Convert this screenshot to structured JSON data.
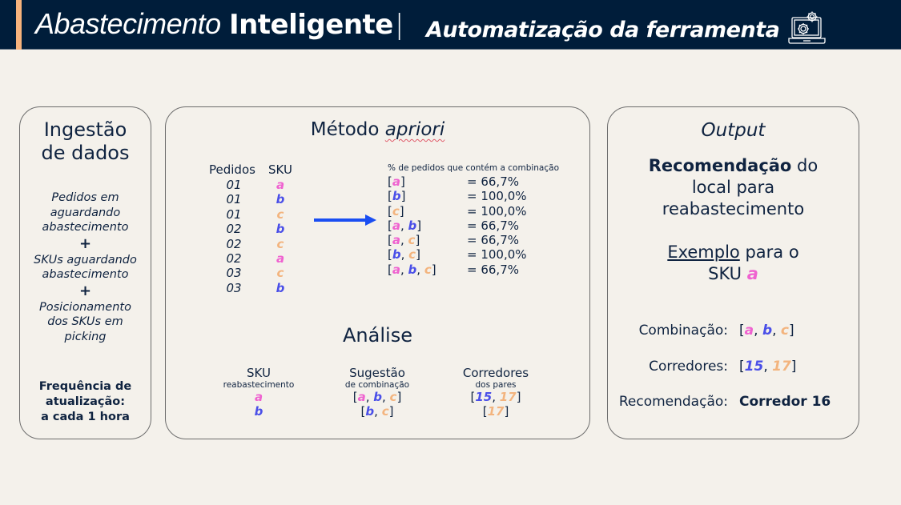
{
  "header": {
    "title_light": "Abastecimento",
    "title_bold": "Inteligente",
    "title_separator": "|",
    "subtitle": "Automatização da ferramenta",
    "icon": "laptop-gears-icon",
    "accent_color": "#f6b27c",
    "background_color": "#001d3a"
  },
  "ingestion": {
    "title_line1": "Ingestão",
    "title_line2": "de dados",
    "items": [
      [
        "Pedidos em",
        "aguardando",
        "abastecimento"
      ],
      [
        "SKUs aguardando",
        "abastecimento"
      ],
      [
        "Posicionamento",
        "dos SKUs em",
        "picking"
      ]
    ],
    "plus": "+",
    "frequency_line1": "Frequência de",
    "frequency_line2": "atualização:",
    "frequency_line3": "a cada 1 hora"
  },
  "method": {
    "title": "Método",
    "title_italic": "apriori",
    "table_headers": [
      "Pedidos",
      "SKU"
    ],
    "rows": [
      {
        "pedido": "01",
        "sku": "a"
      },
      {
        "pedido": "01",
        "sku": "b"
      },
      {
        "pedido": "01",
        "sku": "c"
      },
      {
        "pedido": "02",
        "sku": "b"
      },
      {
        "pedido": "02",
        "sku": "c"
      },
      {
        "pedido": "02",
        "sku": "a"
      },
      {
        "pedido": "03",
        "sku": "c"
      },
      {
        "pedido": "03",
        "sku": "b"
      }
    ],
    "arrow": "right-arrow-icon",
    "combos_header": "% de pedidos que contém a combinação",
    "combos": [
      {
        "items": [
          "a"
        ],
        "value": "= 66,7%"
      },
      {
        "items": [
          "b"
        ],
        "value": "= 100,0%"
      },
      {
        "items": [
          "c"
        ],
        "value": "= 100,0%"
      },
      {
        "items": [
          "a",
          "b"
        ],
        "value": "= 66,7%"
      },
      {
        "items": [
          "a",
          "c"
        ],
        "value": "= 66,7%"
      },
      {
        "items": [
          "b",
          "c"
        ],
        "value": "= 100,0%"
      },
      {
        "items": [
          "a",
          "b",
          "c"
        ],
        "value": "= 66,7%"
      }
    ]
  },
  "analysis": {
    "title": "Análise",
    "columns": [
      {
        "header": "SKU",
        "sub": "reabastecimento"
      },
      {
        "header": "Sugestão",
        "sub": "de combinação"
      },
      {
        "header": "Corredores",
        "sub": "dos pares"
      }
    ],
    "rows": [
      {
        "sku": "a",
        "combo": [
          "a",
          "b",
          "c"
        ],
        "corridors": [
          "15",
          "17"
        ]
      },
      {
        "sku": "b",
        "combo": [
          "b",
          "c"
        ],
        "corridors": [
          "17"
        ]
      }
    ]
  },
  "output": {
    "title": "Output",
    "rec_bold": "Recomendação",
    "rec_rest1": " do",
    "rec_line2": "local para",
    "rec_line3": "reabastecimento",
    "example_underlined": "Exemplo",
    "example_rest": " para o",
    "example_line2": "SKU",
    "example_sku": "a",
    "combination_label": "Combinação:",
    "combination_value": [
      "a",
      "b",
      "c"
    ],
    "corridors_label": "Corredores:",
    "corridors_value": [
      "15",
      "17"
    ],
    "recommendation_label": "Recomendação:",
    "recommendation_value": "Corredor 16"
  },
  "colors": {
    "a": "#ef62d0",
    "b": "#4a4fe8",
    "c": "#f3b47e",
    "text": "#0f2340",
    "arrow": "#1a4ef2"
  }
}
